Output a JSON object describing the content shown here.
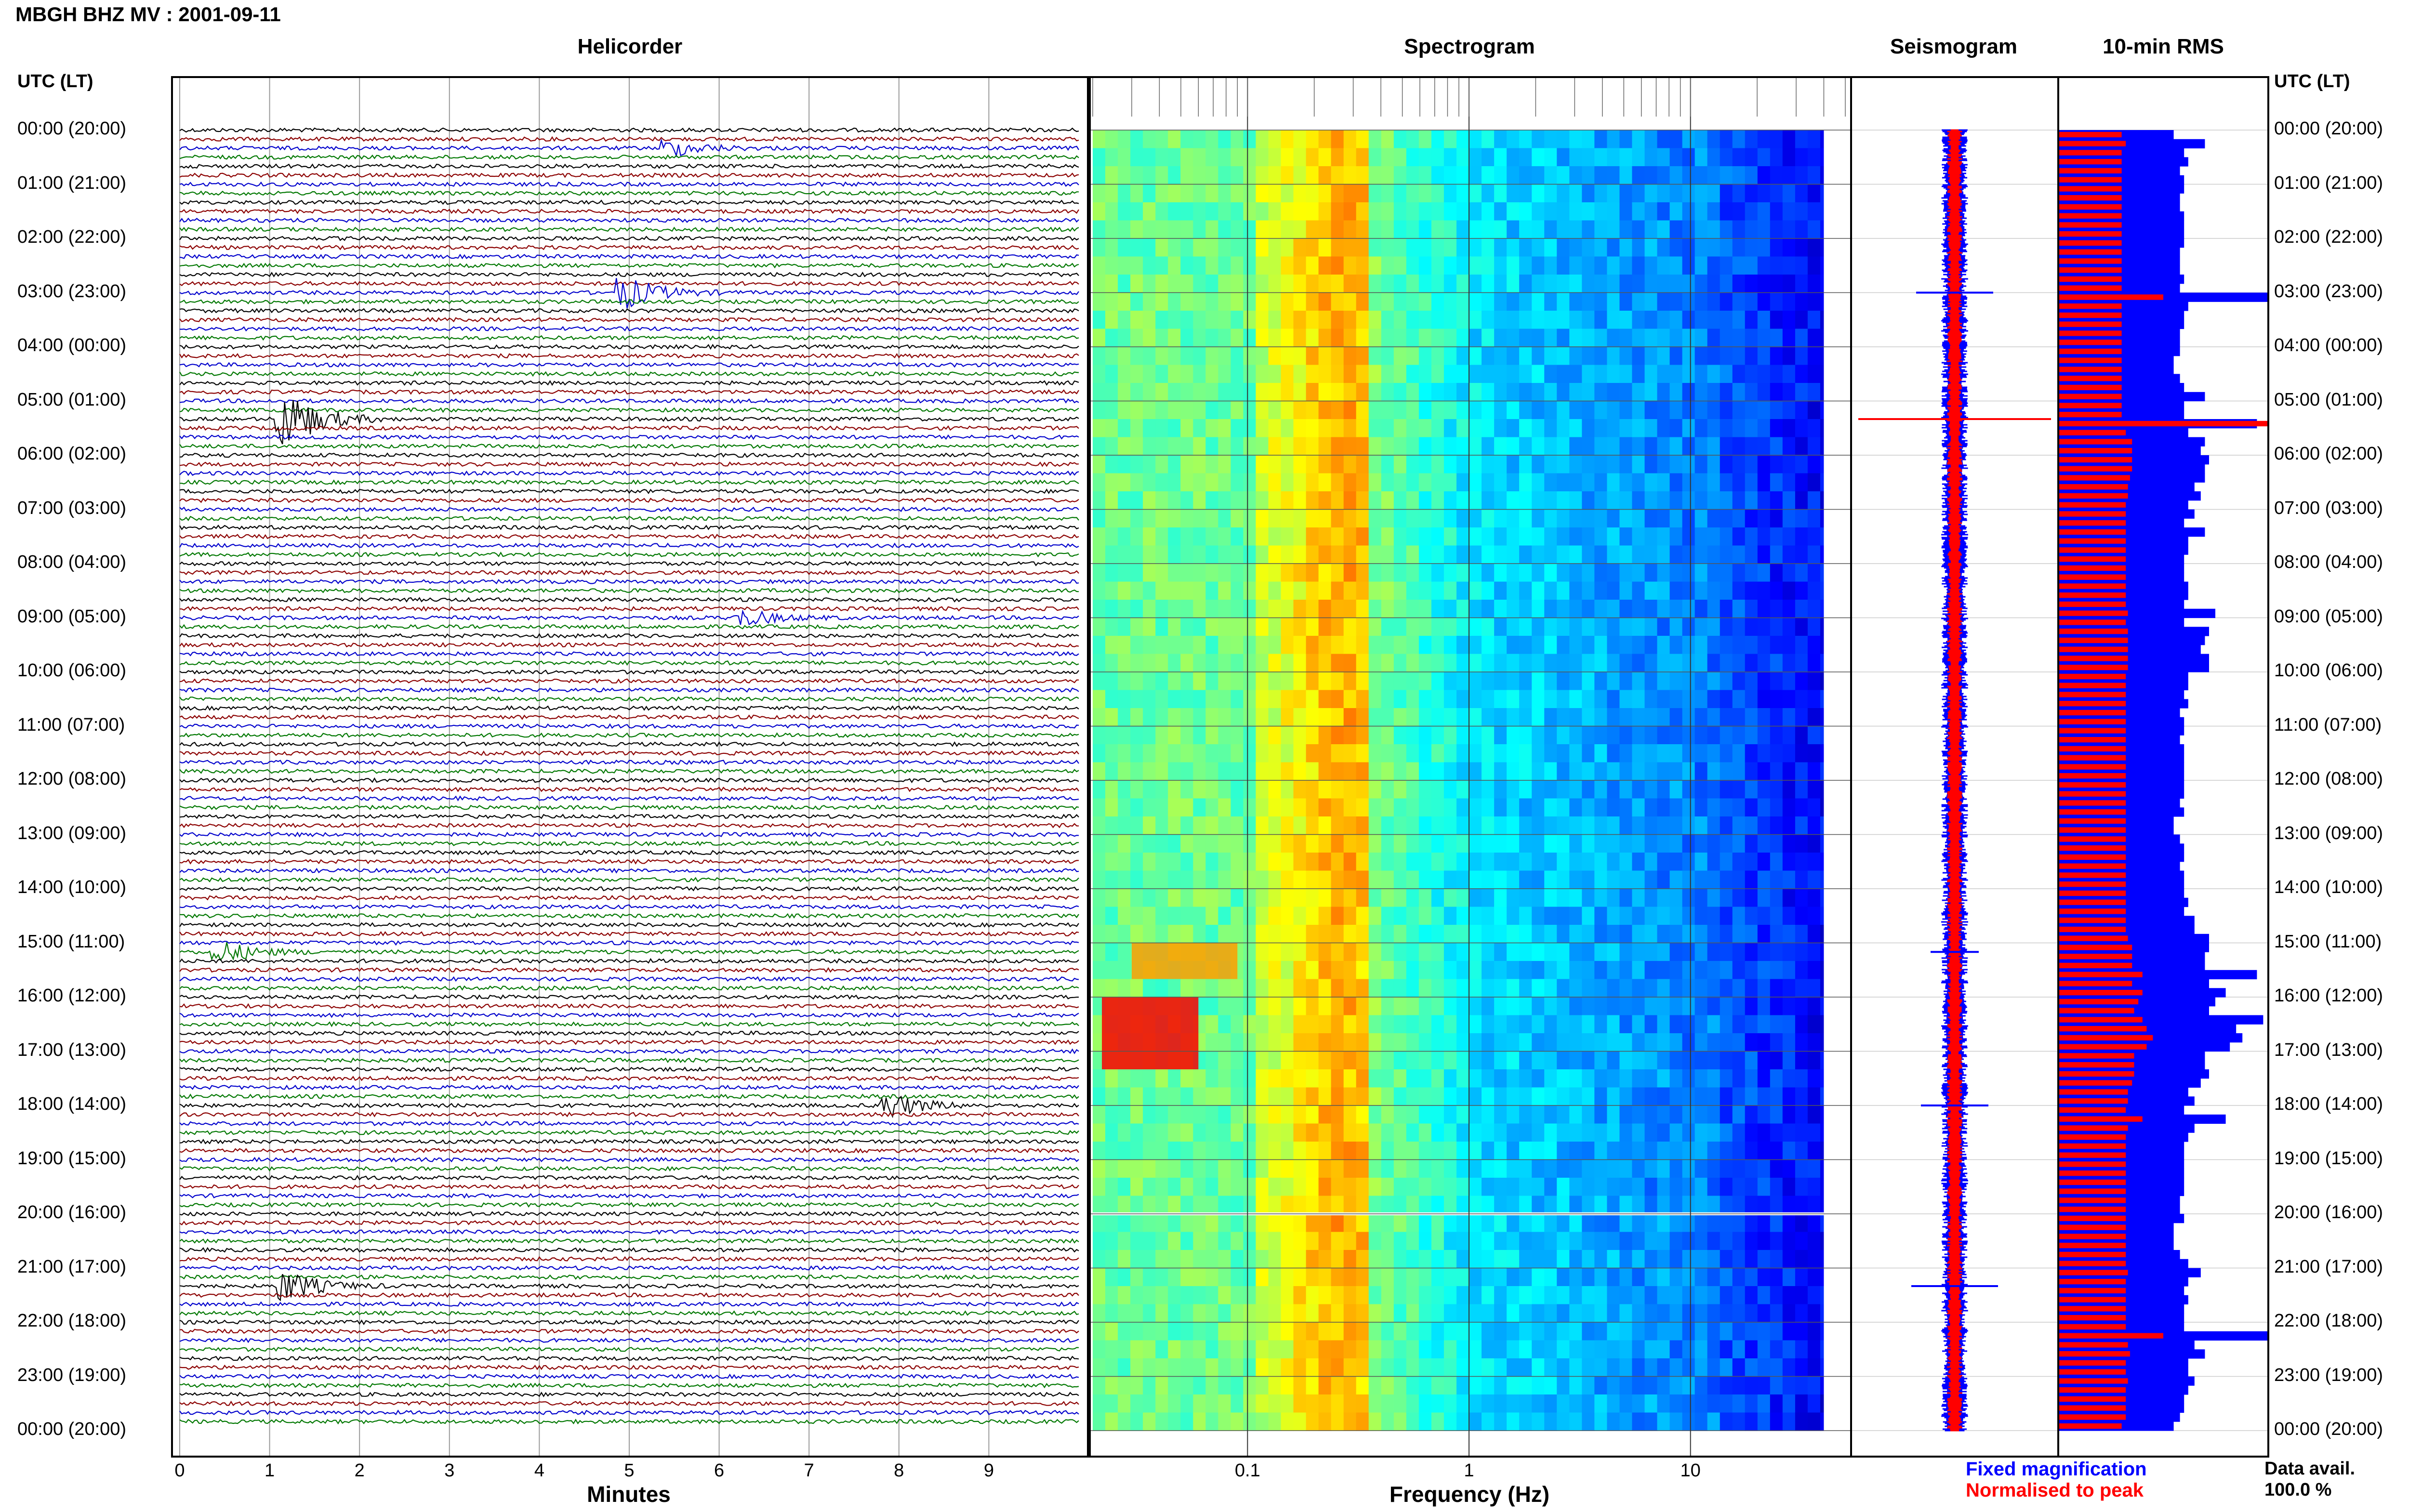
{
  "header": {
    "title": "MBGH BHZ MV : 2001-09-11"
  },
  "panels": {
    "helicorder": "Helicorder",
    "spectrogram": "Spectrogram",
    "seismogram": "Seismogram",
    "rms": "10-min RMS"
  },
  "axis": {
    "utc_left": "UTC (LT)",
    "utc_right": "UTC (LT)",
    "minutes_label": "Minutes",
    "frequency_label": "Frequency (Hz)"
  },
  "legend": {
    "fixed": "Fixed magnification",
    "normalised": "Normalised to peak",
    "avail_label": "Data avail.",
    "avail_value": "100.0 %"
  },
  "colors": {
    "trace_cycle": [
      "#000000",
      "#8b0000",
      "#0000cc",
      "#007700"
    ],
    "rms_fixed": "#0000ff",
    "rms_normalised": "#ff0000"
  },
  "chart_data": {
    "type": "heatmap",
    "time_labels": [
      "00:00 (20:00)",
      "01:00 (21:00)",
      "02:00 (22:00)",
      "03:00 (23:00)",
      "04:00 (00:00)",
      "05:00 (01:00)",
      "06:00 (02:00)",
      "07:00 (03:00)",
      "08:00 (04:00)",
      "09:00 (05:00)",
      "10:00 (06:00)",
      "11:00 (07:00)",
      "12:00 (08:00)",
      "13:00 (09:00)",
      "14:00 (10:00)",
      "15:00 (11:00)",
      "16:00 (12:00)",
      "17:00 (13:00)",
      "18:00 (14:00)",
      "19:00 (15:00)",
      "20:00 (16:00)",
      "21:00 (17:00)",
      "22:00 (18:00)",
      "23:00 (19:00)",
      "00:00 (20:00)"
    ],
    "minutes_ticks": [
      "0",
      "1",
      "2",
      "3",
      "4",
      "5",
      "6",
      "7",
      "8",
      "9"
    ],
    "minutes_range": [
      0,
      10
    ],
    "frequency_ticks": [
      "0.1",
      "1",
      "10"
    ],
    "frequency_range": [
      0.02,
      50
    ],
    "frequency_scale": "log",
    "rows": 144,
    "events": [
      {
        "row": 32,
        "minute": 1.2,
        "amp": 6
      },
      {
        "row": 18,
        "minute": 5.0,
        "amp": 3
      },
      {
        "row": 128,
        "minute": 1.2,
        "amp": 3
      },
      {
        "row": 91,
        "minute": 0.5,
        "amp": 2
      },
      {
        "row": 108,
        "minute": 7.9,
        "amp": 2.5
      },
      {
        "row": 2,
        "minute": 5.5,
        "amp": 1.5
      },
      {
        "row": 54,
        "minute": 6.3,
        "amp": 1.5
      }
    ],
    "rms_fixed": [
      0.55,
      0.7,
      0.6,
      0.62,
      0.58,
      0.6,
      0.6,
      0.58,
      0.58,
      0.6,
      0.6,
      0.6,
      0.6,
      0.58,
      0.58,
      0.58,
      0.6,
      0.58,
      1.0,
      0.62,
      0.6,
      0.6,
      0.58,
      0.58,
      0.58,
      0.55,
      0.55,
      0.58,
      0.6,
      0.7,
      0.6,
      0.6,
      0.95,
      0.62,
      0.7,
      0.68,
      0.72,
      0.7,
      0.7,
      0.65,
      0.68,
      0.62,
      0.65,
      0.6,
      0.7,
      0.62,
      0.62,
      0.6,
      0.6,
      0.6,
      0.62,
      0.62,
      0.6,
      0.75,
      0.6,
      0.72,
      0.7,
      0.68,
      0.72,
      0.72,
      0.62,
      0.62,
      0.6,
      0.62,
      0.58,
      0.6,
      0.6,
      0.58,
      0.6,
      0.6,
      0.6,
      0.6,
      0.6,
      0.6,
      0.58,
      0.6,
      0.55,
      0.55,
      0.58,
      0.6,
      0.6,
      0.58,
      0.6,
      0.6,
      0.6,
      0.62,
      0.6,
      0.65,
      0.65,
      0.72,
      0.72,
      0.7,
      0.7,
      0.95,
      0.72,
      0.8,
      0.75,
      0.72,
      0.98,
      0.85,
      0.88,
      0.82,
      0.7,
      0.7,
      0.72,
      0.68,
      0.62,
      0.65,
      0.6,
      0.8,
      0.65,
      0.62,
      0.6,
      0.6,
      0.6,
      0.6,
      0.6,
      0.6,
      0.58,
      0.58,
      0.6,
      0.55,
      0.55,
      0.55,
      0.58,
      0.62,
      0.68,
      0.62,
      0.6,
      0.62,
      0.6,
      0.6,
      0.6,
      1.0,
      0.65,
      0.7,
      0.62,
      0.62,
      0.65,
      0.62,
      0.6,
      0.6,
      0.58,
      0.55
    ],
    "rms_normalised": [
      0.3,
      0.32,
      0.3,
      0.3,
      0.3,
      0.3,
      0.3,
      0.3,
      0.3,
      0.3,
      0.3,
      0.3,
      0.3,
      0.3,
      0.3,
      0.3,
      0.3,
      0.3,
      0.5,
      0.3,
      0.3,
      0.3,
      0.3,
      0.3,
      0.3,
      0.3,
      0.3,
      0.3,
      0.3,
      0.3,
      0.3,
      0.3,
      1.0,
      0.32,
      0.35,
      0.35,
      0.35,
      0.35,
      0.34,
      0.33,
      0.33,
      0.32,
      0.32,
      0.32,
      0.32,
      0.32,
      0.32,
      0.32,
      0.32,
      0.32,
      0.32,
      0.32,
      0.32,
      0.33,
      0.32,
      0.33,
      0.33,
      0.33,
      0.33,
      0.33,
      0.32,
      0.32,
      0.32,
      0.32,
      0.32,
      0.32,
      0.32,
      0.32,
      0.32,
      0.32,
      0.32,
      0.32,
      0.32,
      0.32,
      0.32,
      0.32,
      0.32,
      0.32,
      0.32,
      0.32,
      0.32,
      0.32,
      0.32,
      0.32,
      0.32,
      0.32,
      0.32,
      0.32,
      0.32,
      0.33,
      0.35,
      0.35,
      0.35,
      0.4,
      0.35,
      0.4,
      0.38,
      0.36,
      0.4,
      0.42,
      0.45,
      0.42,
      0.36,
      0.36,
      0.36,
      0.35,
      0.33,
      0.33,
      0.32,
      0.4,
      0.33,
      0.32,
      0.32,
      0.32,
      0.32,
      0.32,
      0.32,
      0.32,
      0.32,
      0.32,
      0.32,
      0.32,
      0.32,
      0.32,
      0.32,
      0.32,
      0.33,
      0.32,
      0.32,
      0.32,
      0.32,
      0.32,
      0.32,
      0.5,
      0.33,
      0.34,
      0.32,
      0.32,
      0.33,
      0.32,
      0.32,
      0.32,
      0.32,
      0.3
    ]
  }
}
